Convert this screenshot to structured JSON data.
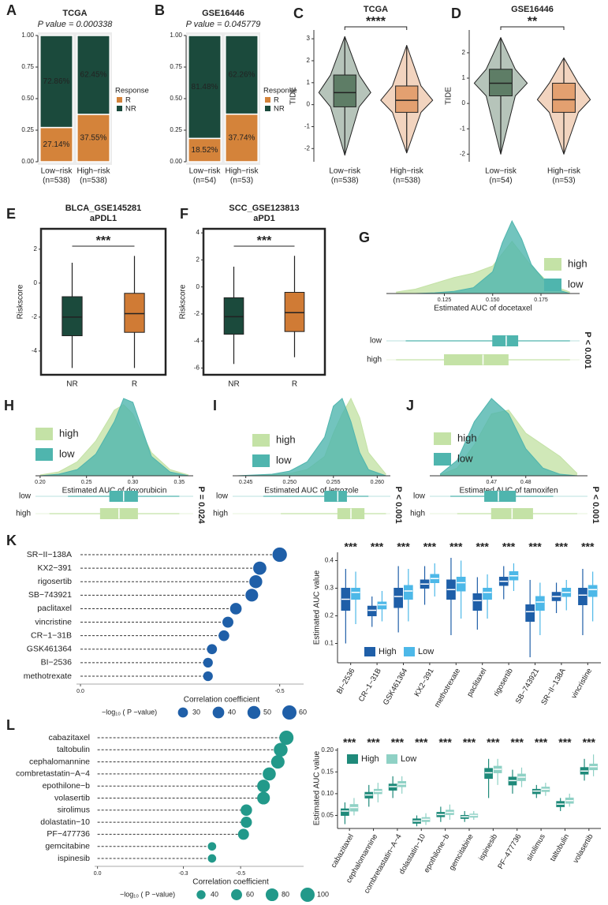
{
  "chart_data": [
    {
      "panel": "A",
      "type": "stackbar",
      "title": "TCGA",
      "subtitle": "P value = 0.000338",
      "categories": [
        "Low−risk",
        "High−risk"
      ],
      "n_labels": [
        "(n=538)",
        "(n=538)"
      ],
      "legend_title": "Response",
      "series": [
        {
          "name": "R",
          "color": "#d4833a",
          "values": [
            0.2714,
            0.3755
          ],
          "value_labels": [
            "27.14%",
            "37.55%"
          ]
        },
        {
          "name": "NR",
          "color": "#1b4a3c",
          "values": [
            0.7286,
            0.6245
          ],
          "value_labels": [
            "72.86%",
            "62.45%"
          ]
        }
      ],
      "ylim": [
        0,
        1
      ],
      "yticks": [
        {
          "value": 0,
          "label": "0.00"
        },
        0.25,
        {
          "value": 0.5,
          "label": "0.50"
        },
        0.75,
        {
          "value": 1,
          "label": "1.00"
        }
      ]
    },
    {
      "panel": "B",
      "type": "stackbar",
      "title": "GSE16446",
      "subtitle": "P value = 0.045779",
      "categories": [
        "Low−risk",
        "High−risk"
      ],
      "n_labels": [
        "(n=54)",
        "(n=53)"
      ],
      "legend_title": "Response",
      "series": [
        {
          "name": "R",
          "color": "#d4833a",
          "values": [
            0.1852,
            0.3774
          ],
          "value_labels": [
            "18.52%",
            "37.74%"
          ]
        },
        {
          "name": "NR",
          "color": "#1b4a3c",
          "values": [
            0.8148,
            0.6226
          ],
          "value_labels": [
            "81.48%",
            "62.26%"
          ]
        }
      ],
      "ylim": [
        0,
        1
      ],
      "yticks": [
        {
          "value": 0,
          "label": "0.00"
        },
        0.25,
        {
          "value": 0.5,
          "label": "0.50"
        },
        0.75,
        {
          "value": 1,
          "label": "1.00"
        }
      ]
    },
    {
      "panel": "C",
      "type": "violin",
      "title": "TCGA",
      "ylabel": "TIDE",
      "categories": [
        "Low−risk",
        "High−risk"
      ],
      "n_labels": [
        "(n=538)",
        "(n=538)"
      ],
      "colors": [
        "#5e7d66",
        "#e3a070"
      ],
      "values": [
        [
          -2.3,
          -0.1,
          0.55,
          1.35,
          3.1
        ],
        [
          -2.2,
          -0.35,
          0.2,
          0.85,
          2.7
        ]
      ],
      "ylim": [
        -2.6,
        3.4
      ],
      "yticks": [
        -2,
        -1,
        0,
        1,
        2,
        3
      ],
      "significance": "****"
    },
    {
      "panel": "D",
      "type": "violin",
      "title": "GSE16446",
      "ylabel": "TIDE",
      "categories": [
        "Low−risk",
        "High−risk"
      ],
      "n_labels": [
        "(n=54)",
        "(n=53)"
      ],
      "colors": [
        "#5e7d66",
        "#e3a070"
      ],
      "values": [
        [
          -2.0,
          0.3,
          0.8,
          1.35,
          2.6
        ],
        [
          -2.0,
          -0.35,
          0.15,
          0.8,
          1.8
        ]
      ],
      "ylim": [
        -2.3,
        2.9
      ],
      "yticks": [
        -2,
        -1,
        0,
        1,
        2
      ],
      "significance": "**"
    },
    {
      "panel": "E",
      "type": "box",
      "title": "BLCA_GSE145281",
      "subtitle": "aPDL1",
      "ylabel": "Riskscore",
      "categories": [
        "NR",
        "R"
      ],
      "colors": [
        "#1b4a3c",
        "#d07b35"
      ],
      "values": [
        [
          -5.0,
          -3.1,
          -2.0,
          -0.8,
          1.2
        ],
        [
          -5.0,
          -2.9,
          -1.8,
          -0.6,
          1.6
        ]
      ],
      "ylim": [
        -5.4,
        3.2
      ],
      "yticks": [
        -4,
        -2,
        0,
        2
      ],
      "significance": "***",
      "frame": true
    },
    {
      "panel": "F",
      "type": "box",
      "title": "SCC_GSE123813",
      "subtitle": "aPD1",
      "ylabel": "Riskscore",
      "categories": [
        "NR",
        "R"
      ],
      "colors": [
        "#1b4a3c",
        "#d07b35"
      ],
      "values": [
        [
          -5.7,
          -3.5,
          -2.2,
          -0.8,
          1.5
        ],
        [
          -5.2,
          -3.3,
          -1.9,
          -0.4,
          2.3
        ]
      ],
      "ylim": [
        -6.5,
        4.3
      ],
      "yticks": [
        -6,
        -4,
        -2,
        0,
        2,
        4
      ],
      "significance": "***",
      "frame": true
    },
    {
      "panel": "G",
      "type": "density",
      "xlabel": "Estimated AUC of docetaxel",
      "p_label": "P < 0.001",
      "xlim": [
        0.095,
        0.195
      ],
      "xticks": [
        0.125,
        {
          "value": 0.15,
          "label": "0.150"
        },
        0.175
      ],
      "x": [
        0.1,
        0.11,
        0.12,
        0.13,
        0.14,
        0.15,
        0.155,
        0.16,
        0.165,
        0.17,
        0.18,
        0.19
      ],
      "series": [
        {
          "name": "high",
          "color": "#c4e2a6",
          "values": [
            2,
            6,
            14,
            22,
            28,
            38,
            55,
            72,
            55,
            38,
            12,
            2
          ],
          "stats": [
            0.1,
            0.125,
            0.145,
            0.158,
            0.19
          ]
        },
        {
          "name": "low",
          "color": "#4fb5ae",
          "values": [
            0,
            0,
            1,
            3,
            8,
            30,
            70,
            100,
            75,
            40,
            8,
            0
          ],
          "stats": [
            0.105,
            0.15,
            0.157,
            0.163,
            0.19
          ]
        }
      ]
    },
    {
      "panel": "H",
      "type": "density",
      "xlabel": "Estimated AUC of doxorubicin",
      "p_label": "P = 0.024",
      "xlim": [
        0.195,
        0.365
      ],
      "xticks": [
        {
          "value": 0.2,
          "label": "0.20"
        },
        0.25,
        {
          "value": 0.3,
          "label": "0.30"
        },
        0.35
      ],
      "x": [
        0.2,
        0.22,
        0.24,
        0.26,
        0.28,
        0.29,
        0.3,
        0.31,
        0.32,
        0.34,
        0.36
      ],
      "series": [
        {
          "name": "high",
          "color": "#c4e2a6",
          "values": [
            1,
            5,
            18,
            45,
            85,
            92,
            80,
            55,
            30,
            8,
            1
          ],
          "stats": [
            0.21,
            0.265,
            0.285,
            0.305,
            0.35
          ]
        },
        {
          "name": "low",
          "color": "#4fb5ae",
          "values": [
            0,
            2,
            8,
            28,
            70,
            100,
            95,
            60,
            25,
            5,
            0
          ],
          "stats": [
            0.23,
            0.275,
            0.29,
            0.305,
            0.35
          ]
        }
      ]
    },
    {
      "panel": "I",
      "type": "density",
      "xlabel": "Estimated AUC of letrozole",
      "p_label": "P < 0.001",
      "xlim": [
        0.2435,
        0.2615
      ],
      "xticks": [
        0.245,
        {
          "value": 0.25,
          "label": "0.250"
        },
        0.255,
        {
          "value": 0.26,
          "label": "0.260"
        }
      ],
      "x": [
        0.244,
        0.248,
        0.25,
        0.252,
        0.254,
        0.255,
        0.256,
        0.257,
        0.258,
        0.259,
        0.261
      ],
      "series": [
        {
          "name": "high",
          "color": "#c4e2a6",
          "values": [
            0,
            1,
            3,
            8,
            25,
            55,
            80,
            100,
            75,
            30,
            2
          ],
          "stats": [
            0.249,
            0.2555,
            0.257,
            0.2585,
            0.261
          ]
        },
        {
          "name": "low",
          "color": "#4fb5ae",
          "values": [
            0,
            2,
            6,
            18,
            50,
            90,
            100,
            70,
            30,
            8,
            0
          ],
          "stats": [
            0.247,
            0.254,
            0.2555,
            0.2565,
            0.259
          ]
        }
      ]
    },
    {
      "panel": "J",
      "type": "density",
      "xlabel": "Estimated AUC of tamoxifen",
      "p_label": "P < 0.001",
      "xlim": [
        0.452,
        0.498
      ],
      "xticks": [
        0.47,
        0.48
      ],
      "x": [
        0.455,
        0.46,
        0.465,
        0.47,
        0.475,
        0.48,
        0.485,
        0.49,
        0.495
      ],
      "series": [
        {
          "name": "high",
          "color": "#c4e2a6",
          "values": [
            1,
            10,
            40,
            80,
            85,
            55,
            40,
            25,
            3
          ],
          "stats": [
            0.46,
            0.47,
            0.476,
            0.482,
            0.495
          ]
        },
        {
          "name": "low",
          "color": "#4fb5ae",
          "values": [
            2,
            20,
            70,
            100,
            80,
            35,
            10,
            2,
            0
          ],
          "stats": [
            0.458,
            0.468,
            0.472,
            0.477,
            0.488
          ]
        }
      ]
    },
    {
      "panel": "K",
      "type": "lollipop",
      "color": "#1f5fa8",
      "xlabel": "Correlation coefficient",
      "size_title": "−log₁₀ ( P −value)",
      "categories": [
        "SR−II−138A",
        "KX2−391",
        "rigosertib",
        "SB−743921",
        "paclitaxel",
        "vincristine",
        "CR−1−31B",
        "GSK461364",
        "BI−2536",
        "methotrexate"
      ],
      "values": [
        -0.5,
        -0.45,
        -0.44,
        -0.43,
        -0.39,
        -0.37,
        -0.36,
        -0.33,
        -0.32,
        -0.32
      ],
      "sizes": [
        62,
        52,
        50,
        48,
        40,
        36,
        34,
        30,
        28,
        28
      ],
      "size_ticks": [
        30,
        40,
        50,
        60
      ],
      "xlim": [
        0.01,
        -0.56
      ],
      "xticks": [
        {
          "value": 0,
          "label": "0.0"
        },
        -0.5
      ]
    },
    {
      "type": "groupbox",
      "ylabel": "Estimated AUC value",
      "categories": [
        "BI−2536",
        "CR−1−31B",
        "GSK461364",
        "KX2−391",
        "methotrexate",
        "paclitaxel",
        "rigosertib",
        "SB−743921",
        "SR−II−138A",
        "vincristine"
      ],
      "sig": [
        "***",
        "***",
        "***",
        "***",
        "***",
        "***",
        "***",
        "***",
        "***",
        "***"
      ],
      "series": [
        {
          "name": "High",
          "color": "#1f5fa8",
          "values": [
            [
              0.1,
              0.22,
              0.26,
              0.3,
              0.37
            ],
            [
              0.16,
              0.2,
              0.22,
              0.235,
              0.27
            ],
            [
              0.14,
              0.23,
              0.27,
              0.3,
              0.38
            ],
            [
              0.24,
              0.3,
              0.315,
              0.33,
              0.38
            ],
            [
              0.13,
              0.26,
              0.295,
              0.33,
              0.41
            ],
            [
              0.15,
              0.22,
              0.255,
              0.28,
              0.34
            ],
            [
              0.26,
              0.31,
              0.325,
              0.34,
              0.38
            ],
            [
              0.05,
              0.18,
              0.215,
              0.24,
              0.33
            ],
            [
              0.21,
              0.255,
              0.27,
              0.285,
              0.32
            ],
            [
              0.13,
              0.24,
              0.275,
              0.3,
              0.37
            ]
          ]
        },
        {
          "name": "Low",
          "color": "#4db8e8",
          "values": [
            [
              0.17,
              0.26,
              0.285,
              0.3,
              0.36
            ],
            [
              0.18,
              0.225,
              0.24,
              0.25,
              0.29
            ],
            [
              0.18,
              0.26,
              0.29,
              0.31,
              0.37
            ],
            [
              0.27,
              0.32,
              0.335,
              0.35,
              0.39
            ],
            [
              0.19,
              0.29,
              0.32,
              0.34,
              0.4
            ],
            [
              0.19,
              0.26,
              0.285,
              0.3,
              0.35
            ],
            [
              0.29,
              0.33,
              0.345,
              0.36,
              0.39
            ],
            [
              0.13,
              0.22,
              0.25,
              0.27,
              0.32
            ],
            [
              0.22,
              0.27,
              0.285,
              0.3,
              0.33
            ],
            [
              0.18,
              0.27,
              0.295,
              0.31,
              0.36
            ]
          ]
        }
      ],
      "ylim": [
        0.03,
        0.43
      ],
      "yticks": [
        0.1,
        0.2,
        0.3,
        0.4
      ]
    },
    {
      "panel": "L",
      "type": "lollipop",
      "color": "#22998a",
      "xlabel": "Correlation coefficient",
      "size_title": "−log₁₀ ( P −value)",
      "categories": [
        "cabazitaxel",
        "taltobulin",
        "cephalomannine",
        "combretastatin−A−4",
        "epothilone−b",
        "volasertib",
        "sirolimus",
        "dolastatin−10",
        "PF−477736",
        "gemcitabine",
        "ispinesib"
      ],
      "values": [
        -0.66,
        -0.64,
        -0.63,
        -0.6,
        -0.58,
        -0.58,
        -0.52,
        -0.52,
        -0.51,
        -0.4,
        -0.4
      ],
      "sizes": [
        100,
        95,
        90,
        85,
        80,
        80,
        65,
        62,
        60,
        35,
        35
      ],
      "size_ticks": [
        40,
        60,
        80,
        100
      ],
      "xlim": [
        0.01,
        -0.72
      ],
      "xticks": [
        {
          "value": 0,
          "label": "0.0"
        },
        -0.3,
        -0.5
      ]
    },
    {
      "type": "groupbox",
      "ylabel": "Estimated AUC value",
      "categories": [
        "cabazitaxel",
        "cephalomannine",
        "combretastatin−A−4",
        "dolastatin−10",
        "epothilone−b",
        "gemcitabine",
        "ispinesib",
        "PF−477736",
        "sirolimus",
        "taltobulin",
        "volasertib"
      ],
      "sig": [
        "***",
        "***",
        "***",
        "***",
        "***",
        "***",
        "***",
        "***",
        "***",
        "***",
        "***"
      ],
      "series": [
        {
          "name": "High",
          "color": "#1f8a7a",
          "values": [
            [
              0.03,
              0.05,
              0.06,
              0.065,
              0.08
            ],
            [
              0.07,
              0.09,
              0.097,
              0.103,
              0.12
            ],
            [
              0.09,
              0.108,
              0.116,
              0.122,
              0.14
            ],
            [
              0.025,
              0.032,
              0.037,
              0.042,
              0.05
            ],
            [
              0.035,
              0.047,
              0.052,
              0.057,
              0.07
            ],
            [
              0.035,
              0.043,
              0.047,
              0.05,
              0.06
            ],
            [
              0.09,
              0.135,
              0.148,
              0.158,
              0.18
            ],
            [
              0.1,
              0.12,
              0.13,
              0.138,
              0.155
            ],
            [
              0.09,
              0.1,
              0.106,
              0.11,
              0.12
            ],
            [
              0.06,
              0.07,
              0.076,
              0.082,
              0.09
            ],
            [
              0.13,
              0.145,
              0.152,
              0.16,
              0.18
            ]
          ]
        },
        {
          "name": "Low",
          "color": "#8fd1c5",
          "values": [
            [
              0.05,
              0.06,
              0.068,
              0.075,
              0.09
            ],
            [
              0.08,
              0.1,
              0.105,
              0.11,
              0.125
            ],
            [
              0.1,
              0.116,
              0.122,
              0.128,
              0.14
            ],
            [
              0.028,
              0.036,
              0.041,
              0.045,
              0.055
            ],
            [
              0.04,
              0.052,
              0.057,
              0.062,
              0.075
            ],
            [
              0.04,
              0.046,
              0.05,
              0.053,
              0.06
            ],
            [
              0.12,
              0.148,
              0.156,
              0.163,
              0.18
            ],
            [
              0.115,
              0.13,
              0.138,
              0.145,
              0.16
            ],
            [
              0.095,
              0.105,
              0.11,
              0.115,
              0.125
            ],
            [
              0.07,
              0.078,
              0.084,
              0.09,
              0.1
            ],
            [
              0.14,
              0.155,
              0.162,
              0.168,
              0.19
            ]
          ]
        }
      ],
      "ylim": [
        0.02,
        0.205
      ],
      "yticks": [
        0.05,
        {
          "value": 0.1,
          "label": "0.10"
        },
        0.15,
        {
          "value": 0.2,
          "label": "0.20"
        }
      ]
    }
  ]
}
